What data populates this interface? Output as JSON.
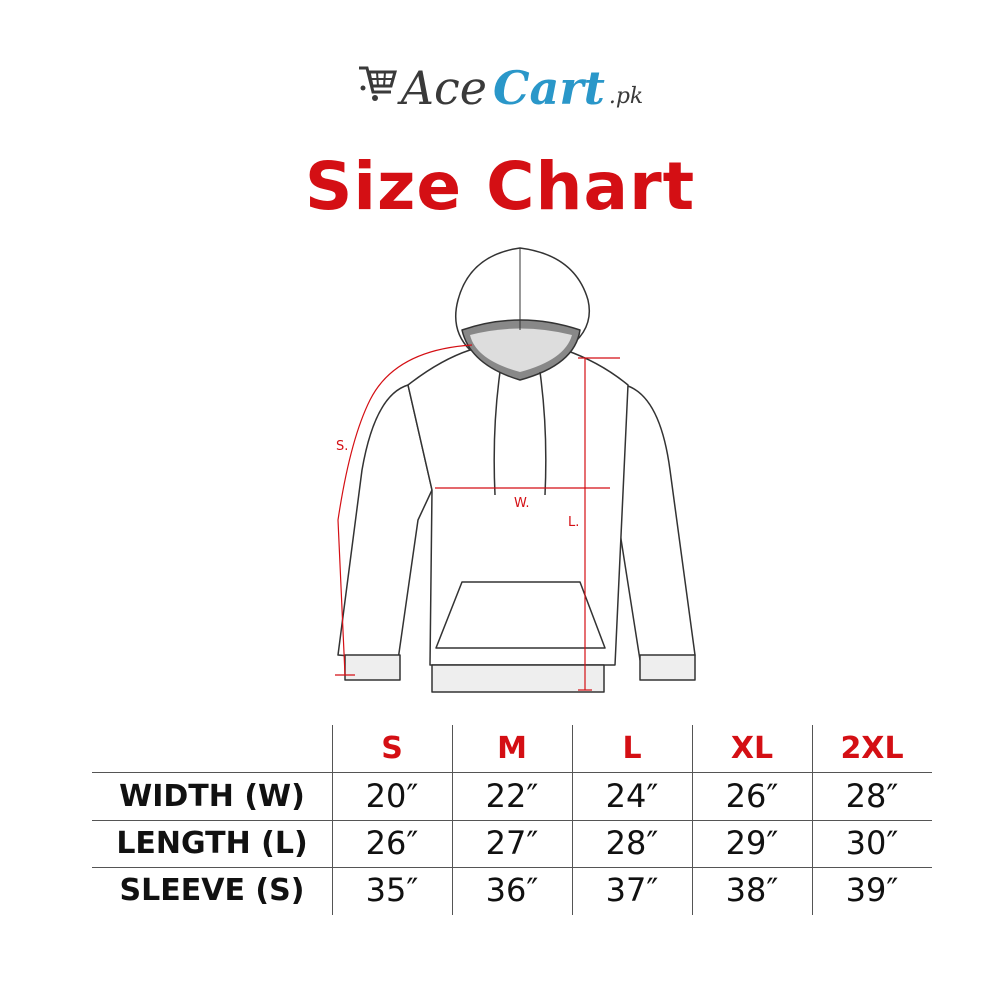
{
  "logo": {
    "part1": "Ace",
    "part2": "Cart",
    "part3": ".pk",
    "colors": {
      "dark": "#3a3a3a",
      "blue": "#2a97c9"
    },
    "icon": "shopping-cart-icon"
  },
  "title": "Size Chart",
  "accent_color": "#d40f14",
  "diagram": {
    "labels": {
      "sleeve": "S.",
      "width": "W.",
      "length": "L."
    }
  },
  "table": {
    "sizes": [
      "S",
      "M",
      "L",
      "XL",
      "2XL"
    ],
    "rows": [
      {
        "label": "WIDTH (W)",
        "values": [
          "20″",
          "22″",
          "24″",
          "26″",
          "28″"
        ]
      },
      {
        "label": "LENGTH (L)",
        "values": [
          "26″",
          "27″",
          "28″",
          "29″",
          "30″"
        ]
      },
      {
        "label": "SLEEVE (S)",
        "values": [
          "35″",
          "36″",
          "37″",
          "38″",
          "39″"
        ]
      }
    ]
  }
}
